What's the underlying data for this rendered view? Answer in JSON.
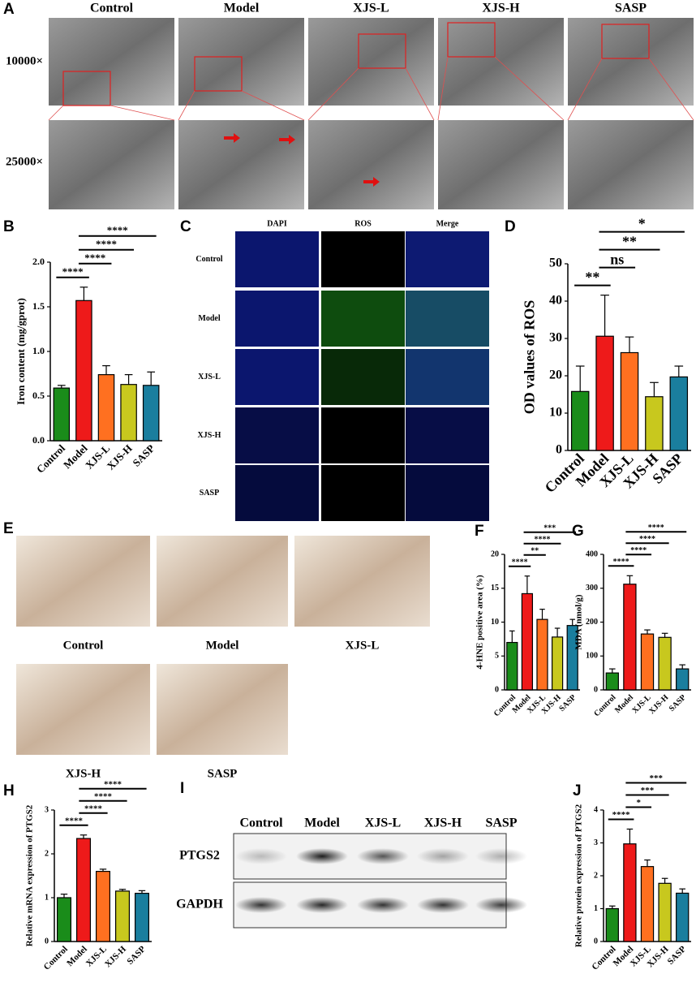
{
  "figure_a": {
    "label": "A",
    "columns": [
      "Control",
      "Model",
      "XJS-L",
      "XJS-H",
      "SASP"
    ],
    "rows": [
      "10000×",
      "25000×"
    ]
  },
  "figure_c": {
    "label": "C",
    "columns": [
      "DAPI",
      "ROS",
      "Merge"
    ],
    "rows": [
      "Control",
      "Model",
      "XJS-L",
      "XJS-H",
      "SASP"
    ]
  },
  "figure_e": {
    "label": "E",
    "captions": [
      "Control",
      "Model",
      "XJS-L",
      "XJS-H",
      "SASP"
    ]
  },
  "figure_i": {
    "label": "I",
    "columns": [
      "Control",
      "Model",
      "XJS-L",
      "XJS-H",
      "SASP"
    ],
    "rows": [
      "PTGS2",
      "GAPDH"
    ]
  },
  "chart_data": [
    {
      "type": "bar",
      "label": "B",
      "ylabel": "Iron content (mg/gprot)",
      "categories": [
        "Control",
        "Model",
        "XJS-L",
        "XJS-H",
        "SASP"
      ],
      "values": [
        0.59,
        1.57,
        0.74,
        0.63,
        0.62
      ],
      "errors": [
        0.03,
        0.15,
        0.1,
        0.11,
        0.15
      ],
      "colors": [
        "#1a8c1a",
        "#ee1a1a",
        "#ff7020",
        "#c8c81e",
        "#1a7e9e"
      ],
      "ylim": [
        0,
        2
      ],
      "yticks": [
        {
          "value": 0,
          "label": "0.0"
        },
        0.5,
        {
          "value": 1,
          "label": "1.0"
        },
        1.5,
        {
          "value": 2,
          "label": "2.0"
        }
      ],
      "comparisons": [
        {
          "pair": [
            0,
            1
          ],
          "label": "****"
        },
        {
          "pair": [
            1,
            2
          ],
          "label": "****"
        },
        {
          "pair": [
            1,
            3
          ],
          "label": "****"
        },
        {
          "pair": [
            1,
            4
          ],
          "label": "****"
        }
      ]
    },
    {
      "type": "bar",
      "label": "D",
      "ylabel": "OD values of ROS",
      "categories": [
        "Control",
        "Model",
        "XJS-L",
        "XJS-H",
        "SASP"
      ],
      "values": [
        15.8,
        30.6,
        26.2,
        14.4,
        19.7
      ],
      "errors": [
        6.8,
        11,
        4.2,
        3.8,
        2.9
      ],
      "colors": [
        "#1a8c1a",
        "#ee1a1a",
        "#ff7020",
        "#c8c81e",
        "#1a7e9e"
      ],
      "ylim": [
        0,
        50
      ],
      "yticks": [
        0,
        10,
        20,
        30,
        40,
        50
      ],
      "comparisons": [
        {
          "pair": [
            0,
            1
          ],
          "label": "**"
        },
        {
          "pair": [
            1,
            2
          ],
          "label": "ns"
        },
        {
          "pair": [
            1,
            3
          ],
          "label": "**"
        },
        {
          "pair": [
            1,
            4
          ],
          "label": "*"
        }
      ]
    },
    {
      "type": "bar",
      "label": "F",
      "ylabel": "4-HNE positive area (%)",
      "categories": [
        "Control",
        "Model",
        "XJS-L",
        "XJS-H",
        "SASP"
      ],
      "values": [
        7.0,
        14.2,
        10.4,
        7.8,
        9.5
      ],
      "errors": [
        1.7,
        2.6,
        1.5,
        1.3,
        0.9
      ],
      "colors": [
        "#1a8c1a",
        "#ee1a1a",
        "#ff7020",
        "#c8c81e",
        "#1a7e9e"
      ],
      "ylim": [
        0,
        20
      ],
      "yticks": [
        0,
        5,
        10,
        15,
        20
      ],
      "comparisons": [
        {
          "pair": [
            0,
            1
          ],
          "label": "****"
        },
        {
          "pair": [
            1,
            2
          ],
          "label": "**"
        },
        {
          "pair": [
            1,
            3
          ],
          "label": "****"
        },
        {
          "pair": [
            1,
            4
          ],
          "label": "***"
        }
      ]
    },
    {
      "type": "bar",
      "label": "G",
      "ylabel": "MDA (nmol/g)",
      "categories": [
        "Control",
        "Model",
        "XJS-L",
        "XJS-H",
        "SASP"
      ],
      "values": [
        50,
        312,
        165,
        155,
        62
      ],
      "errors": [
        12,
        25,
        12,
        12,
        12
      ],
      "colors": [
        "#1a8c1a",
        "#ee1a1a",
        "#ff7020",
        "#c8c81e",
        "#1a7e9e"
      ],
      "ylim": [
        0,
        400
      ],
      "yticks": [
        0,
        100,
        200,
        300,
        400
      ],
      "comparisons": [
        {
          "pair": [
            0,
            1
          ],
          "label": "****"
        },
        {
          "pair": [
            1,
            2
          ],
          "label": "****"
        },
        {
          "pair": [
            1,
            3
          ],
          "label": "****"
        },
        {
          "pair": [
            1,
            4
          ],
          "label": "****"
        }
      ]
    },
    {
      "type": "bar",
      "label": "H",
      "ylabel": "Relative mRNA expression of PTGS2",
      "categories": [
        "Control",
        "Model",
        "XJS-L",
        "XJS-H",
        "SASP"
      ],
      "values": [
        1.0,
        2.35,
        1.6,
        1.15,
        1.1
      ],
      "errors": [
        0.08,
        0.08,
        0.05,
        0.04,
        0.06
      ],
      "colors": [
        "#1a8c1a",
        "#ee1a1a",
        "#ff7020",
        "#c8c81e",
        "#1a7e9e"
      ],
      "ylim": [
        0,
        3
      ],
      "yticks": [
        0,
        1,
        2,
        3
      ],
      "comparisons": [
        {
          "pair": [
            0,
            1
          ],
          "label": "****"
        },
        {
          "pair": [
            1,
            2
          ],
          "label": "****"
        },
        {
          "pair": [
            1,
            3
          ],
          "label": "****"
        },
        {
          "pair": [
            1,
            4
          ],
          "label": "****"
        }
      ]
    },
    {
      "type": "bar",
      "label": "J",
      "ylabel": "Relative protein expression of PTGS2",
      "categories": [
        "Control",
        "Model",
        "XJS-L",
        "XJS-H",
        "SASP"
      ],
      "values": [
        1.0,
        2.97,
        2.28,
        1.77,
        1.47
      ],
      "errors": [
        0.08,
        0.45,
        0.2,
        0.15,
        0.13
      ],
      "colors": [
        "#1a8c1a",
        "#ee1a1a",
        "#ff7020",
        "#c8c81e",
        "#1a7e9e"
      ],
      "ylim": [
        0,
        4
      ],
      "yticks": [
        0,
        1,
        2,
        3,
        4
      ],
      "comparisons": [
        {
          "pair": [
            0,
            1
          ],
          "label": "****"
        },
        {
          "pair": [
            1,
            2
          ],
          "label": "*"
        },
        {
          "pair": [
            1,
            3
          ],
          "label": "***"
        },
        {
          "pair": [
            1,
            4
          ],
          "label": "***"
        }
      ]
    }
  ]
}
